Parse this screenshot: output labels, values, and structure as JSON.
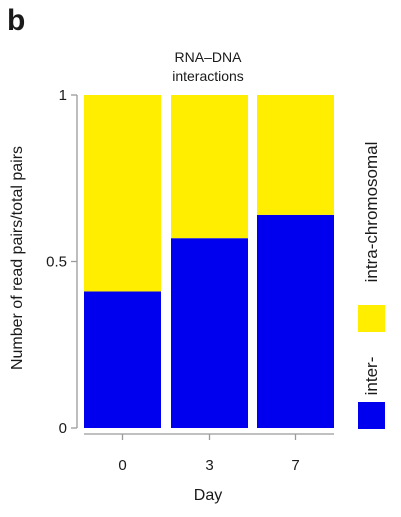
{
  "panel_label": "b",
  "chart_data": {
    "type": "bar",
    "stacked": true,
    "title": "RNA–DNA interactions",
    "title_lines": [
      "RNA–DNA",
      "interactions"
    ],
    "xlabel": "Day",
    "ylabel": "Number of read pairs/total pairs",
    "categories": [
      "0",
      "3",
      "7"
    ],
    "ylim": [
      0,
      1
    ],
    "yticks": [
      0,
      0.5,
      1
    ],
    "ytick_labels": [
      "0",
      "0.5",
      "1"
    ],
    "series": [
      {
        "name": "inter-",
        "values": [
          0.41,
          0.57,
          0.64
        ],
        "color": "#0000ee"
      },
      {
        "name": "intra-chromosomal",
        "values": [
          0.59,
          0.43,
          0.36
        ],
        "color": "#ffee00"
      }
    ],
    "legend_position": "right",
    "grid": false
  },
  "colors": {
    "background": "#ffffff",
    "axis": "#9a9a9a",
    "text": "#1a1a1a"
  }
}
